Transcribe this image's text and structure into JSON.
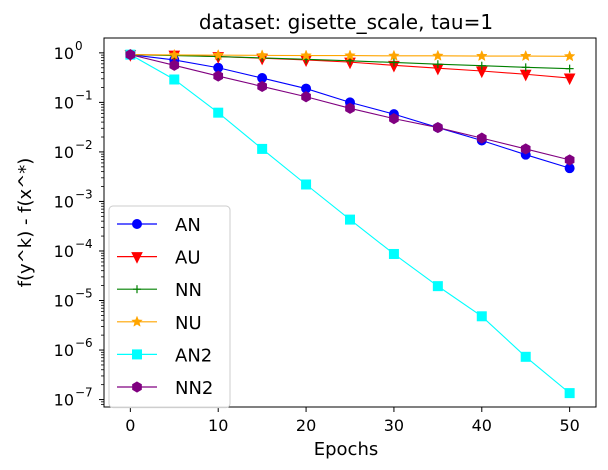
{
  "chart_data": {
    "type": "line",
    "title": "dataset: gisette_scale, tau=1",
    "xlabel": "Epochs",
    "ylabel": "f(y^k) - f(x^*)",
    "yscale": "log",
    "xlim": [
      -3,
      53
    ],
    "ylim_exp": [
      -7.15,
      0.3
    ],
    "x_ticks": [
      0,
      10,
      20,
      30,
      40,
      50
    ],
    "y_ticks": [
      {
        "exp": 0,
        "base": "10",
        "sup": "0"
      },
      {
        "exp": -1,
        "base": "10",
        "sup": "−1"
      },
      {
        "exp": -2,
        "base": "10",
        "sup": "−2"
      },
      {
        "exp": -3,
        "base": "10",
        "sup": "−3"
      },
      {
        "exp": -4,
        "base": "10",
        "sup": "−4"
      },
      {
        "exp": -5,
        "base": "10",
        "sup": "−5"
      },
      {
        "exp": -6,
        "base": "10",
        "sup": "−6"
      },
      {
        "exp": -7,
        "base": "10",
        "sup": "−7"
      }
    ],
    "legend_position": "lower-left",
    "x": [
      0,
      5,
      10,
      15,
      20,
      25,
      30,
      35,
      40,
      45,
      50
    ],
    "series": [
      {
        "name": "AN",
        "color": "#0000ff",
        "marker": "circle",
        "values": [
          0.92,
          0.72,
          0.5,
          0.31,
          0.19,
          0.1,
          0.058,
          0.031,
          0.017,
          0.0088,
          0.0047
        ]
      },
      {
        "name": "AU",
        "color": "#ff0000",
        "marker": "triangle-down",
        "values": [
          0.92,
          0.9,
          0.84,
          0.78,
          0.72,
          0.65,
          0.56,
          0.49,
          0.43,
          0.37,
          0.31
        ]
      },
      {
        "name": "NN",
        "color": "#008000",
        "marker": "plus",
        "values": [
          0.92,
          0.88,
          0.84,
          0.79,
          0.74,
          0.69,
          0.64,
          0.59,
          0.55,
          0.51,
          0.48
        ]
      },
      {
        "name": "NU",
        "color": "#ffa500",
        "marker": "star",
        "values": [
          0.92,
          0.91,
          0.9,
          0.89,
          0.88,
          0.88,
          0.87,
          0.87,
          0.86,
          0.86,
          0.85
        ]
      },
      {
        "name": "AN2",
        "color": "#00ffff",
        "marker": "square",
        "values": [
          0.92,
          0.29,
          0.062,
          0.0115,
          0.0022,
          0.00043,
          8.7e-05,
          1.95e-05,
          4.8e-06,
          7.3e-07,
          1.35e-07
        ]
      },
      {
        "name": "NN2",
        "color": "#800080",
        "marker": "hexagon",
        "values": [
          0.92,
          0.56,
          0.34,
          0.21,
          0.13,
          0.076,
          0.047,
          0.031,
          0.019,
          0.0115,
          0.0069
        ]
      }
    ]
  }
}
